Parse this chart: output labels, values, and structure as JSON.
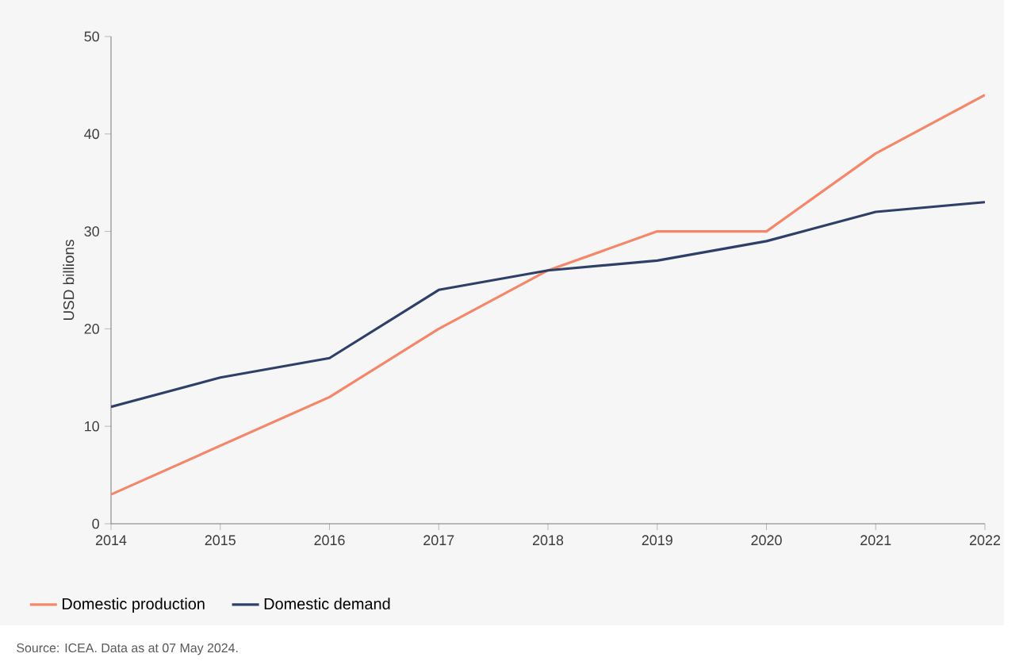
{
  "chart_data": {
    "type": "line",
    "ylabel": "USD billions",
    "x": [
      2014,
      2015,
      2016,
      2017,
      2018,
      2019,
      2020,
      2021,
      2022
    ],
    "series": [
      {
        "name": "Domestic production",
        "color": "#f4876a",
        "values": [
          3,
          8,
          13,
          20,
          26,
          30,
          30,
          38,
          44
        ]
      },
      {
        "name": "Domestic demand",
        "color": "#2f4068",
        "values": [
          12,
          15,
          17,
          24,
          26,
          27,
          29,
          32,
          33
        ]
      }
    ],
    "xlim": [
      2014,
      2022
    ],
    "xticks": [
      2014,
      2015,
      2016,
      2017,
      2018,
      2019,
      2020,
      2021,
      2022
    ],
    "ylim": [
      0,
      50
    ],
    "yticks": [
      0,
      10,
      20,
      30,
      40,
      50
    ],
    "legend": "bottom",
    "annotations": [
      "Source: ICEA. Data as at 07 May 2024."
    ]
  }
}
